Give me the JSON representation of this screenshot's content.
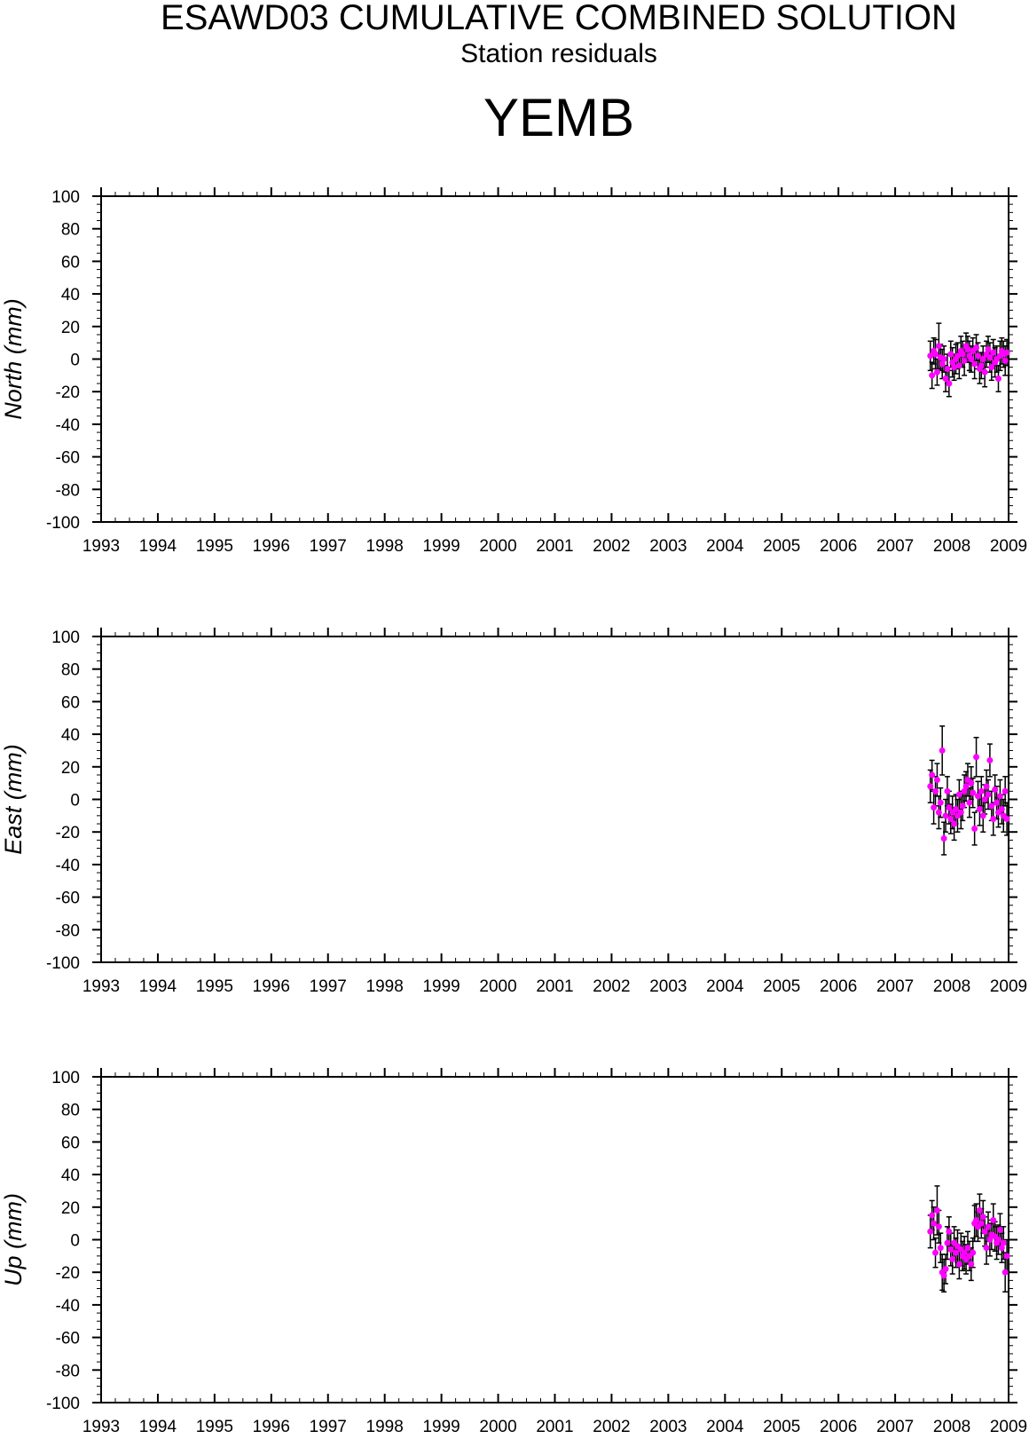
{
  "figure": {
    "title": "ESAWD03 CUMULATIVE COMBINED SOLUTION",
    "subtitle": "Station residuals",
    "station": "YEMB"
  },
  "colors": {
    "marker": "#ff00ff",
    "errorbar": "#000000",
    "axes": "#000000"
  },
  "chart_data": [
    {
      "type": "scatter",
      "ylabel": "North (mm)",
      "xlim": [
        1993,
        2009
      ],
      "ylim": [
        -100,
        100
      ],
      "x_ticks": [
        "1993",
        "1994",
        "1995",
        "1996",
        "1997",
        "1998",
        "1999",
        "2000",
        "2001",
        "2002",
        "2003",
        "2004",
        "2005",
        "2006",
        "2007",
        "2008",
        "2009"
      ],
      "y_ticks": [
        "100",
        "80",
        "60",
        "40",
        "20",
        "0",
        "-20",
        "-40",
        "-60",
        "-80",
        "-100"
      ],
      "series": [
        {
          "x": [
            2007.62,
            2007.65,
            2007.68,
            2007.71,
            2007.74,
            2007.77,
            2007.8,
            2007.83,
            2007.86,
            2007.89,
            2007.92,
            2007.95,
            2007.98,
            2008.01,
            2008.04,
            2008.07,
            2008.1,
            2008.13,
            2008.16,
            2008.19,
            2008.22,
            2008.25,
            2008.28,
            2008.31,
            2008.34,
            2008.37,
            2008.4,
            2008.43,
            2008.46,
            2008.49,
            2008.52,
            2008.55,
            2008.58,
            2008.61,
            2008.64,
            2008.67,
            2008.7,
            2008.73,
            2008.76,
            2008.79,
            2008.82,
            2008.85,
            2008.88,
            2008.91,
            2008.94,
            2008.97
          ],
          "y": [
            2,
            -10,
            5,
            3,
            -8,
            8,
            1,
            -3,
            0,
            -12,
            -6,
            -15,
            3,
            -2,
            -5,
            0,
            2,
            -4,
            5,
            3,
            -1,
            8,
            6,
            2,
            0,
            5,
            -3,
            7,
            2,
            -6,
            -4,
            0,
            -8,
            3,
            6,
            1,
            -5,
            4,
            -2,
            0,
            -12,
            2,
            5,
            3,
            -1,
            4
          ],
          "err": [
            9,
            8,
            8,
            9,
            8,
            14,
            8,
            9,
            8,
            8,
            9,
            8,
            8,
            9,
            8,
            9,
            8,
            8,
            9,
            8,
            9,
            8,
            8,
            9,
            8,
            8,
            9,
            8,
            8,
            9,
            8,
            8,
            9,
            8,
            8,
            9,
            8,
            8,
            9,
            8,
            8,
            9,
            8,
            8,
            9,
            8
          ]
        }
      ]
    },
    {
      "type": "scatter",
      "ylabel": "East (mm)",
      "xlim": [
        1993,
        2009
      ],
      "ylim": [
        -100,
        100
      ],
      "x_ticks": [
        "1993",
        "1994",
        "1995",
        "1996",
        "1997",
        "1998",
        "1999",
        "2000",
        "2001",
        "2002",
        "2003",
        "2004",
        "2005",
        "2006",
        "2007",
        "2008",
        "2009"
      ],
      "y_ticks": [
        "100",
        "80",
        "60",
        "40",
        "20",
        "0",
        "-20",
        "-40",
        "-60",
        "-80",
        "-100"
      ],
      "series": [
        {
          "x": [
            2007.62,
            2007.65,
            2007.68,
            2007.71,
            2007.74,
            2007.77,
            2007.8,
            2007.83,
            2007.86,
            2007.89,
            2007.92,
            2007.95,
            2007.98,
            2008.01,
            2008.04,
            2008.07,
            2008.1,
            2008.13,
            2008.16,
            2008.19,
            2008.22,
            2008.25,
            2008.28,
            2008.31,
            2008.34,
            2008.37,
            2008.4,
            2008.43,
            2008.46,
            2008.49,
            2008.52,
            2008.55,
            2008.58,
            2008.61,
            2008.64,
            2008.67,
            2008.7,
            2008.73,
            2008.76,
            2008.79,
            2008.82,
            2008.85,
            2008.88,
            2008.91,
            2008.94,
            2008.97
          ],
          "y": [
            8,
            15,
            -5,
            5,
            12,
            -8,
            -2,
            30,
            -24,
            -10,
            5,
            -5,
            -12,
            -8,
            -15,
            -6,
            -10,
            3,
            -8,
            -4,
            5,
            8,
            12,
            -2,
            10,
            4,
            -18,
            26,
            2,
            -6,
            5,
            -10,
            0,
            8,
            3,
            24,
            -4,
            -12,
            6,
            -2,
            -8,
            2,
            -6,
            -10,
            5,
            -12
          ],
          "err": [
            10,
            9,
            10,
            9,
            10,
            10,
            9,
            15,
            10,
            10,
            9,
            10,
            9,
            10,
            10,
            9,
            10,
            9,
            10,
            9,
            10,
            9,
            10,
            9,
            10,
            9,
            10,
            12,
            9,
            10,
            9,
            10,
            9,
            10,
            9,
            10,
            9,
            10,
            9,
            10,
            9,
            10,
            9,
            10,
            9,
            10
          ]
        }
      ]
    },
    {
      "type": "scatter",
      "ylabel": "Up (mm)",
      "xlim": [
        1993,
        2009
      ],
      "ylim": [
        -100,
        100
      ],
      "x_ticks": [
        "1993",
        "1994",
        "1995",
        "1996",
        "1997",
        "1998",
        "1999",
        "2000",
        "2001",
        "2002",
        "2003",
        "2004",
        "2005",
        "2006",
        "2007",
        "2008",
        "2009"
      ],
      "y_ticks": [
        "100",
        "80",
        "60",
        "40",
        "20",
        "0",
        "-20",
        "-40",
        "-60",
        "-80",
        "-100"
      ],
      "series": [
        {
          "x": [
            2007.62,
            2007.65,
            2007.68,
            2007.71,
            2007.74,
            2007.77,
            2007.8,
            2007.83,
            2007.86,
            2007.89,
            2007.92,
            2007.95,
            2007.98,
            2008.01,
            2008.04,
            2008.07,
            2008.1,
            2008.13,
            2008.16,
            2008.19,
            2008.22,
            2008.25,
            2008.28,
            2008.31,
            2008.34,
            2008.37,
            2008.4,
            2008.43,
            2008.46,
            2008.49,
            2008.52,
            2008.55,
            2008.58,
            2008.61,
            2008.64,
            2008.67,
            2008.7,
            2008.73,
            2008.76,
            2008.79,
            2008.82,
            2008.85,
            2008.88,
            2008.91,
            2008.94,
            2008.97
          ],
          "y": [
            5,
            15,
            10,
            -8,
            18,
            8,
            -5,
            -20,
            -22,
            -18,
            -2,
            5,
            -6,
            -12,
            -2,
            -8,
            -4,
            -15,
            -6,
            -10,
            -8,
            -12,
            -5,
            -10,
            -15,
            -8,
            10,
            12,
            8,
            18,
            10,
            14,
            5,
            -5,
            8,
            0,
            3,
            12,
            2,
            -2,
            0,
            6,
            -5,
            -2,
            -20,
            -10
          ],
          "err": [
            10,
            9,
            10,
            9,
            15,
            10,
            9,
            11,
            10,
            9,
            10,
            9,
            10,
            9,
            10,
            9,
            10,
            9,
            10,
            9,
            10,
            9,
            10,
            9,
            10,
            9,
            11,
            10,
            9,
            10,
            9,
            10,
            9,
            10,
            9,
            10,
            9,
            10,
            9,
            10,
            9,
            10,
            9,
            10,
            12,
            10
          ]
        }
      ]
    }
  ]
}
